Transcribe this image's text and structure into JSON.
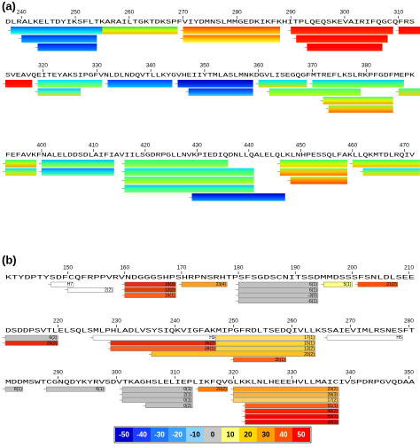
{
  "panels": [
    {
      "label": "(a)",
      "rows": [
        {
          "xlim": [
            237,
            313
          ],
          "xticks": [
            240,
            250,
            260,
            270,
            280,
            290,
            300,
            310
          ],
          "sequence": "DLRALKELTDYIKSFLTKARAILTGKTDKSPFVIYDMNSLMMGEDKIKFKHITPLQEQSKEVAIRIFQGCQFRS",
          "bars": [
            {
              "start": 238,
              "end": 254,
              "colors": [
                "#1060ff",
                "#00a0ff",
                "#00e0ff",
                "#40ffb0"
              ]
            },
            {
              "start": 240,
              "end": 253,
              "colors": [
                "#0030e0",
                "#0070ff",
                "#00b0ff"
              ]
            },
            {
              "start": 243,
              "end": 253,
              "colors": [
                "#0020c0",
                "#0050ff",
                "#0090ff"
              ]
            },
            {
              "start": 255,
              "end": 268,
              "colors": [
                "#40e040",
                "#d0ff00",
                "#ffb000"
              ]
            },
            {
              "start": 270,
              "end": 287,
              "colors": [
                "#ff4000",
                "#ff9000",
                "#ffe000"
              ]
            },
            {
              "start": 270,
              "end": 287,
              "colors": [
                "#ff6000",
                "#ffc000",
                "#ffff40"
              ]
            },
            {
              "start": 290,
              "end": 308,
              "colors": [
                "#ff0000",
                "#ff2000",
                "#ff4000"
              ]
            },
            {
              "start": 291,
              "end": 307,
              "colors": [
                "#ff0000",
                "#ff1000",
                "#ff3000"
              ]
            },
            {
              "start": 293,
              "end": 306,
              "colors": [
                "#ff0000",
                "#ff0000",
                "#ff2000"
              ]
            },
            {
              "start": 310,
              "end": 313,
              "colors": [
                "#ff0000",
                "#ff2000"
              ]
            }
          ]
        },
        {
          "xlim": [
            313,
            389
          ],
          "xticks": [
            320,
            330,
            340,
            350,
            360,
            370,
            380
          ],
          "sequence": "SVEAVQEITEYAKSIPGFVNLDLNDQVTLLKYGVHEIIYTMLASLMNKDGVLISEGQGFMTREFLKSLRKPFGDFMEPK",
          "bars": [
            {
              "start": 313,
              "end": 317,
              "colors": [
                "#ff0000",
                "#ff2000"
              ]
            },
            {
              "start": 319,
              "end": 330,
              "colors": [
                "#00e0ff",
                "#40ffa0",
                "#a0ff40"
              ]
            },
            {
              "start": 319,
              "end": 326,
              "colors": [
                "#00c0ff",
                "#40ffc0",
                "#ffd000"
              ]
            },
            {
              "start": 332,
              "end": 343,
              "colors": [
                "#0040ff",
                "#0080ff",
                "#00c0ff"
              ]
            },
            {
              "start": 345,
              "end": 358,
              "colors": [
                "#0000c0",
                "#0020e0",
                "#0060ff"
              ]
            },
            {
              "start": 347,
              "end": 358,
              "colors": [
                "#0030e0",
                "#0070ff",
                "#40d0ff"
              ]
            },
            {
              "start": 360,
              "end": 368,
              "colors": [
                "#00e0ff",
                "#40ff80",
                "#ffd000"
              ]
            },
            {
              "start": 362,
              "end": 378,
              "colors": [
                "#40ff80",
                "#80ff40",
                "#c0ff00"
              ]
            },
            {
              "start": 370,
              "end": 386,
              "colors": [
                "#00d0ff",
                "#40ff80",
                "#a0ff20"
              ]
            },
            {
              "start": 372,
              "end": 384,
              "colors": [
                "#40ff80",
                "#e0ff00",
                "#ff9000"
              ]
            },
            {
              "start": 373,
              "end": 384,
              "colors": [
                "#80ff40",
                "#ffc000",
                "#ff6000"
              ]
            },
            {
              "start": 386,
              "end": 389,
              "colors": [
                "#40ff80",
                "#ffd000"
              ]
            }
          ]
        },
        {
          "xlim": [
            393,
            472
          ],
          "xticks": [
            400,
            410,
            420,
            430,
            440,
            450,
            460,
            470
          ],
          "sequence": "FEFAVKFNALELDDSDLAIFIAVIILSGDRPGLLNVKPIEDIQDNLLQALELQLKLNHPESSQLFAKLLQKMTDLRQIV",
          "bars": [
            {
              "start": 393,
              "end": 398,
              "colors": [
                "#40ff80",
                "#c0ff00",
                "#ff9000"
              ]
            },
            {
              "start": 393,
              "end": 398,
              "colors": [
                "#00e0ff",
                "#80ff40",
                "#ffd000"
              ]
            },
            {
              "start": 400,
              "end": 413,
              "colors": [
                "#00c0ff",
                "#40ff80",
                "#a0ff40"
              ]
            },
            {
              "start": 400,
              "end": 413,
              "colors": [
                "#0080ff",
                "#00e0ff",
                "#80ff80"
              ]
            },
            {
              "start": 416,
              "end": 435,
              "colors": [
                "#40ff80",
                "#60ff60",
                "#a0ff40"
              ]
            },
            {
              "start": 416,
              "end": 440,
              "colors": [
                "#00e0ff",
                "#40ff80",
                "#80ff40"
              ]
            },
            {
              "start": 416,
              "end": 440,
              "colors": [
                "#40ffa0",
                "#80ff40",
                "#c0ff20"
              ]
            },
            {
              "start": 416,
              "end": 440,
              "colors": [
                "#00c0ff",
                "#40ffa0",
                "#80ff60"
              ]
            },
            {
              "start": 429,
              "end": 446,
              "colors": [
                "#0000c0",
                "#0040ff",
                "#00a0ff"
              ]
            },
            {
              "start": 446,
              "end": 458,
              "colors": [
                "#40ff80",
                "#c0ff00",
                "#ffd000"
              ]
            },
            {
              "start": 446,
              "end": 458,
              "colors": [
                "#80ff40",
                "#ffc000",
                "#ff7000"
              ]
            },
            {
              "start": 448,
              "end": 458,
              "colors": [
                "#c0ff00",
                "#ff9000",
                "#ff4000"
              ]
            },
            {
              "start": 460,
              "end": 472,
              "colors": [
                "#40ff80",
                "#c0ff00",
                "#ffb000"
              ]
            },
            {
              "start": 462,
              "end": 472,
              "colors": [
                "#00e0ff",
                "#80ff40",
                "#ffd000"
              ]
            }
          ]
        }
      ]
    },
    {
      "label": "(b)",
      "rows": [
        {
          "xlim": [
            139,
            211
          ],
          "xticks": [
            150,
            160,
            170,
            180,
            190,
            200,
            210
          ],
          "sequence": "KTYDPTYSDFCQFRPPVRVNDGGGSHPSHRPNSRHTPSFSGDSCNITSSDMMDSSSFSNLDLSEE",
          "bars": [
            {
              "start": 147,
              "end": 150,
              "color": "#ffffff",
              "label": "H7"
            },
            {
              "start": 150,
              "end": 157,
              "color": "#ffffff",
              "label": "2(2)"
            },
            {
              "start": 160,
              "end": 168,
              "color": "#e03010",
              "label": "19(3)"
            },
            {
              "start": 160,
              "end": 168,
              "color": "#e04010",
              "label": "12(2)"
            },
            {
              "start": 160,
              "end": 168,
              "color": "#ff6020",
              "label": "16(1)"
            },
            {
              "start": 170,
              "end": 177,
              "color": "#ffa020",
              "label": "23(4)"
            },
            {
              "start": 180,
              "end": 193,
              "color": "#c0c0c0",
              "label": "6(1)"
            },
            {
              "start": 180,
              "end": 193,
              "color": "#c0c0c0",
              "label": "6(1)"
            },
            {
              "start": 180,
              "end": 193,
              "color": "#c0c0c0",
              "label": "-3(0)"
            },
            {
              "start": 180,
              "end": 193,
              "color": "#c0c0c0",
              "label": "-6(1)"
            },
            {
              "start": 195,
              "end": 199,
              "color": "#ffff80",
              "label": "5(1)"
            },
            {
              "start": 201,
              "end": 207,
              "color": "#ff5000",
              "label": "21(2)"
            }
          ]
        },
        {
          "xlim": [
            211,
            281
          ],
          "xticks": [
            220,
            230,
            240,
            250,
            260,
            270,
            280
          ],
          "sequence": "DSDDPSVTLELSQLSMLPHLADLVSYSIQKVIGFAKMIPGFRDLTSEDQIVLLKSSAIEVIMLRSNESFT",
          "bars": [
            {
              "start": 211,
              "end": 219,
              "color": "#c0c0c0",
              "label": "6(2)"
            },
            {
              "start": 211,
              "end": 219,
              "color": "#e03010",
              "label": "25(3)"
            },
            {
              "start": 226,
              "end": 246,
              "color": "#ffffff",
              "label": "H3"
            },
            {
              "start": 229,
              "end": 246,
              "color": "#e03010",
              "label": "36(2)"
            },
            {
              "start": 229,
              "end": 246,
              "color": "#ff6020",
              "label": "39(1)"
            },
            {
              "start": 236,
              "end": 263,
              "color": "#ffc020",
              "label": "20(2)"
            },
            {
              "start": 247,
              "end": 263,
              "color": "#ffe060",
              "label": "17(1)"
            },
            {
              "start": 247,
              "end": 263,
              "color": "#ffd040",
              "label": "15(1)"
            },
            {
              "start": 247,
              "end": 263,
              "color": "#ffd040",
              "label": "13(2)"
            },
            {
              "start": 250,
              "end": 258,
              "color": "#ff6020",
              "label": "35(1)"
            },
            {
              "start": 266,
              "end": 278,
              "color": "#ffffff",
              "label": "H5"
            }
          ]
        },
        {
          "xlim": [
            281,
            351
          ],
          "xticks": [
            290,
            300,
            310,
            320,
            330,
            340,
            350
          ],
          "sequence": "MDDMSWTCGNQDYKYRVSDVTKAGHSLELIEPLIKFQVGLKKLNLHEEEHVLLMAICIVSPDRPGVQDAA",
          "bars": [
            {
              "start": 281,
              "end": 283,
              "color": "#c0c0c0",
              "label": "8(1)"
            },
            {
              "start": 288,
              "end": 297,
              "color": "#c0c0c0",
              "label": "6(1)"
            },
            {
              "start": 301,
              "end": 312,
              "color": "#c0c0c0",
              "label": "0(1)"
            },
            {
              "start": 301,
              "end": 312,
              "color": "#c0c0c0",
              "label": "2(1)"
            },
            {
              "start": 301,
              "end": 312,
              "color": "#c0c0c0",
              "label": "0(1)"
            },
            {
              "start": 305,
              "end": 312,
              "color": "#c0c0c0",
              "label": "0(2)"
            },
            {
              "start": 314,
              "end": 318,
              "color": "#ff8000",
              "label": "20(2)"
            },
            {
              "start": 320,
              "end": 337,
              "color": "#ffa020",
              "label": "29(2)"
            },
            {
              "start": 320,
              "end": 337,
              "color": "#ffb040",
              "label": "28(3)"
            },
            {
              "start": 320,
              "end": 337,
              "color": "#ffd060",
              "label": "17(2)"
            },
            {
              "start": 322,
              "end": 337,
              "color": "#ff6020",
              "label": "31(1)"
            },
            {
              "start": 322,
              "end": 337,
              "color": "#ff2000",
              "label": "48(2)"
            },
            {
              "start": 322,
              "end": 337,
              "color": "#ff0000",
              "label": "50(1)"
            },
            {
              "start": 322,
              "end": 337,
              "color": "#ff0000",
              "label": "49(3)"
            }
          ]
        }
      ]
    }
  ],
  "legend": {
    "values": [
      -50,
      -40,
      -30,
      -20,
      -10,
      0,
      10,
      20,
      30,
      40,
      50
    ],
    "colors": [
      "#0000c8",
      "#1e3cff",
      "#1e78ff",
      "#3ca0ff",
      "#8cd2ff",
      "#c8c8c8",
      "#ffff80",
      "#ffd700",
      "#ffa000",
      "#ff5000",
      "#ff0000"
    ]
  }
}
